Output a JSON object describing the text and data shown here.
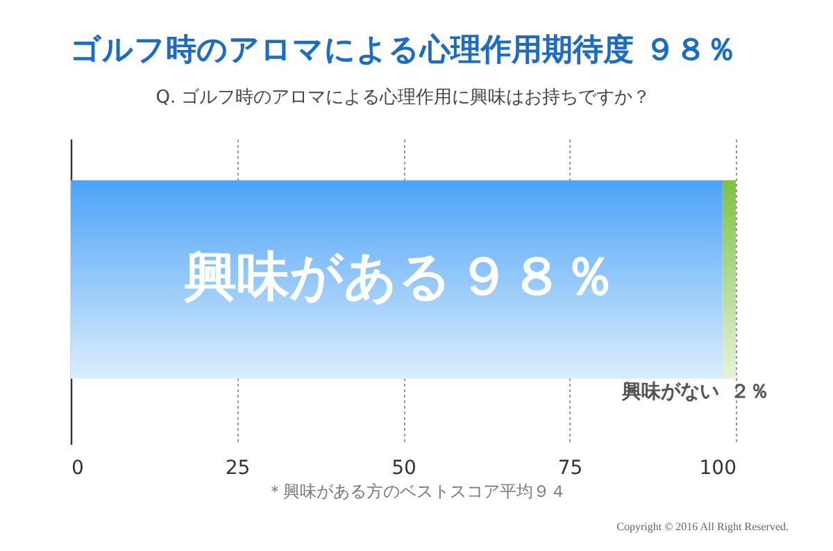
{
  "chart_data": {
    "type": "bar",
    "orientation": "horizontal",
    "stacked": true,
    "title": "ゴルフ時のアロマによる心理作用期待度 ９８％",
    "subtitle": "Q. ゴルフ時のアロマによる心理作用に興味はお持ちですか？",
    "categories": [
      null
    ],
    "series": [
      {
        "name": "興味がある",
        "color": "#4da3f7",
        "values": [
          98
        ],
        "value_labels": [
          "９８％"
        ]
      },
      {
        "name": "興味がない",
        "color": "#7cc142",
        "values": [
          2
        ],
        "value_labels": [
          "２％"
        ]
      }
    ],
    "xlim": [
      0,
      100
    ],
    "xticks": [
      0,
      25,
      50,
      75,
      100
    ],
    "grid": "x",
    "annotations": [
      "＊興味がある方のベストスコア平均９４",
      "Copyright © 2016 All Right Reserved."
    ]
  }
}
